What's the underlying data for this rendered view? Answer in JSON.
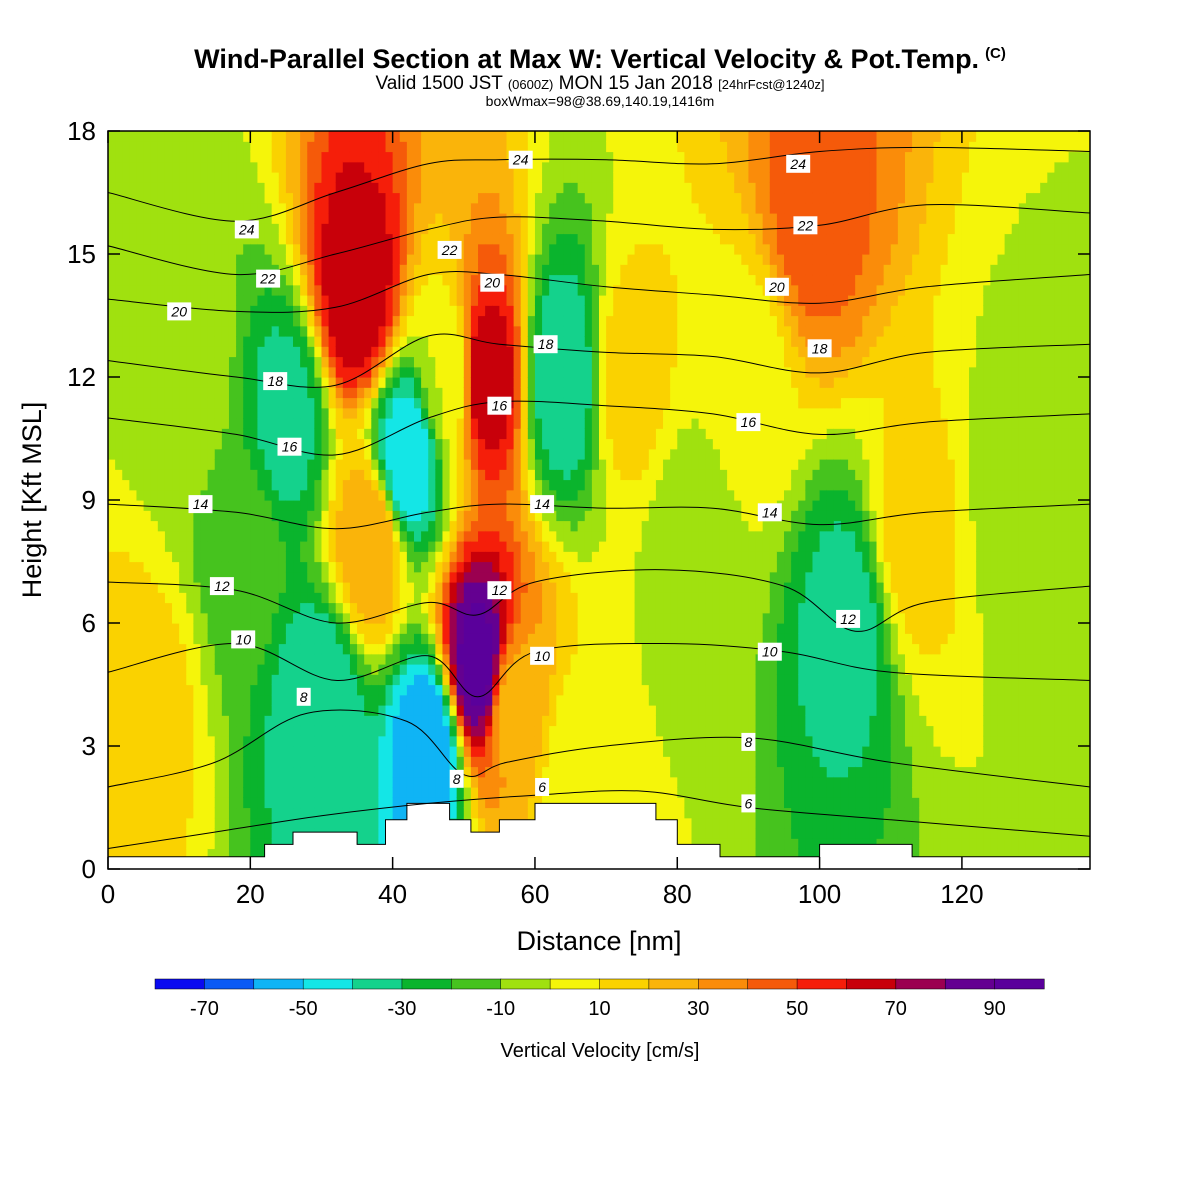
{
  "title": {
    "main": "Wind-Parallel Section at Max W: Vertical Velocity & Pot.Temp.",
    "copyright": "(C)",
    "valid_prefix": "Valid 1500 JST",
    "valid_utc": "(0600Z)",
    "valid_date": "MON 15 Jan 2018",
    "forecast": "[24hrFcst@1240z]",
    "box_info": "boxWmax=98@38.69,140.19,1416m"
  },
  "chart_data": {
    "type": "heatmap",
    "xlabel": "Distance [nm]",
    "ylabel": "Height [Kft MSL]",
    "xlim": [
      0,
      138
    ],
    "ylim": [
      0,
      18
    ],
    "x_ticks": [
      0,
      20,
      40,
      60,
      80,
      100,
      120
    ],
    "y_ticks": [
      0,
      3,
      6,
      9,
      12,
      15,
      18
    ],
    "colorbar": {
      "label": "Vertical Velocity [cm/s]",
      "levels": [
        -80,
        -70,
        -60,
        -50,
        -40,
        -30,
        -20,
        -10,
        0,
        10,
        20,
        30,
        40,
        50,
        60,
        70,
        80,
        90,
        100
      ],
      "tick_labels": [
        "-70",
        "-50",
        "-30",
        "-10",
        "10",
        "30",
        "50",
        "70",
        "90"
      ],
      "colors": [
        "#0a0af0",
        "#0a5af5",
        "#0fb4f5",
        "#14e6e6",
        "#14d28c",
        "#0ab42d",
        "#46c31e",
        "#a0e10f",
        "#f5f50a",
        "#fad200",
        "#fab40a",
        "#fa8c0a",
        "#f55a0a",
        "#f51e0a",
        "#c8000a",
        "#9b0050",
        "#640091",
        "#5a009b"
      ]
    },
    "velocity_samples": [
      {
        "x": 5,
        "y": 4,
        "w": 15
      },
      {
        "x": 12,
        "y": 12,
        "w": -5
      },
      {
        "x": 19,
        "y": 8,
        "w": -15
      },
      {
        "x": 25,
        "y": 11,
        "w": -35
      },
      {
        "x": 30,
        "y": 4,
        "w": -40
      },
      {
        "x": 35,
        "y": 14,
        "w": 70
      },
      {
        "x": 37,
        "y": 8,
        "w": 30
      },
      {
        "x": 42,
        "y": 10,
        "w": -50
      },
      {
        "x": 45,
        "y": 3,
        "w": -60
      },
      {
        "x": 48,
        "y": 12,
        "w": 0
      },
      {
        "x": 52,
        "y": 5,
        "w": 95
      },
      {
        "x": 53,
        "y": 12,
        "w": 70
      },
      {
        "x": 57,
        "y": 4,
        "w": 25
      },
      {
        "x": 64,
        "y": 12,
        "w": -40
      },
      {
        "x": 66,
        "y": 2,
        "w": 0
      },
      {
        "x": 73,
        "y": 12,
        "w": 15
      },
      {
        "x": 82,
        "y": 8,
        "w": -5
      },
      {
        "x": 90,
        "y": 12,
        "w": 5
      },
      {
        "x": 99,
        "y": 16,
        "w": 45
      },
      {
        "x": 104,
        "y": 6,
        "w": -35
      },
      {
        "x": 113,
        "y": 8,
        "w": 15
      },
      {
        "x": 128,
        "y": 9,
        "w": -5
      }
    ],
    "terrain_kft": [
      {
        "x": 0,
        "h": 0.3
      },
      {
        "x": 22,
        "h": 0.3
      },
      {
        "x": 22,
        "h": 0.6
      },
      {
        "x": 26,
        "h": 0.6
      },
      {
        "x": 26,
        "h": 0.9
      },
      {
        "x": 35,
        "h": 0.9
      },
      {
        "x": 35,
        "h": 0.6
      },
      {
        "x": 39,
        "h": 0.6
      },
      {
        "x": 39,
        "h": 1.2
      },
      {
        "x": 42,
        "h": 1.2
      },
      {
        "x": 42,
        "h": 1.6
      },
      {
        "x": 48,
        "h": 1.6
      },
      {
        "x": 48,
        "h": 1.2
      },
      {
        "x": 51,
        "h": 1.2
      },
      {
        "x": 51,
        "h": 0.9
      },
      {
        "x": 55,
        "h": 0.9
      },
      {
        "x": 55,
        "h": 1.2
      },
      {
        "x": 60,
        "h": 1.2
      },
      {
        "x": 60,
        "h": 1.6
      },
      {
        "x": 77,
        "h": 1.6
      },
      {
        "x": 77,
        "h": 1.2
      },
      {
        "x": 80,
        "h": 1.2
      },
      {
        "x": 80,
        "h": 0.6
      },
      {
        "x": 86,
        "h": 0.6
      },
      {
        "x": 86,
        "h": 0.3
      },
      {
        "x": 100,
        "h": 0.3
      },
      {
        "x": 100,
        "h": 0.6
      },
      {
        "x": 113,
        "h": 0.6
      },
      {
        "x": 113,
        "h": 0.3
      },
      {
        "x": 138,
        "h": 0.3
      }
    ],
    "theta_contours": [
      {
        "label": "6",
        "pts": [
          [
            0,
            0.5
          ],
          [
            15,
            0.9
          ],
          [
            30,
            1.3
          ],
          [
            45,
            1.6
          ],
          [
            60,
            1.8
          ],
          [
            75,
            1.9
          ],
          [
            90,
            1.5
          ],
          [
            110,
            1.2
          ],
          [
            138,
            0.8
          ]
        ]
      },
      {
        "label": "8",
        "pts": [
          [
            0,
            2.0
          ],
          [
            15,
            2.6
          ],
          [
            28,
            3.8
          ],
          [
            42,
            3.6
          ],
          [
            50,
            2.3
          ],
          [
            56,
            2.6
          ],
          [
            70,
            3.0
          ],
          [
            90,
            3.2
          ],
          [
            110,
            2.6
          ],
          [
            138,
            2.0
          ]
        ]
      },
      {
        "label": "10",
        "pts": [
          [
            0,
            4.8
          ],
          [
            18,
            5.5
          ],
          [
            32,
            4.6
          ],
          [
            45,
            5.2
          ],
          [
            52,
            4.2
          ],
          [
            60,
            5.3
          ],
          [
            78,
            5.5
          ],
          [
            95,
            5.3
          ],
          [
            110,
            4.8
          ],
          [
            138,
            4.6
          ]
        ]
      },
      {
        "label": "12",
        "pts": [
          [
            0,
            7.0
          ],
          [
            18,
            6.8
          ],
          [
            32,
            6.0
          ],
          [
            45,
            6.5
          ],
          [
            52,
            6.2
          ],
          [
            60,
            7.0
          ],
          [
            78,
            7.3
          ],
          [
            95,
            6.9
          ],
          [
            105,
            5.8
          ],
          [
            115,
            6.5
          ],
          [
            138,
            6.9
          ]
        ]
      },
      {
        "label": "14",
        "pts": [
          [
            0,
            8.9
          ],
          [
            18,
            8.7
          ],
          [
            32,
            8.3
          ],
          [
            45,
            8.7
          ],
          [
            55,
            8.9
          ],
          [
            70,
            8.8
          ],
          [
            85,
            8.8
          ],
          [
            100,
            8.4
          ],
          [
            115,
            8.7
          ],
          [
            138,
            8.9
          ]
        ]
      },
      {
        "label": "16",
        "pts": [
          [
            0,
            11.0
          ],
          [
            18,
            10.6
          ],
          [
            32,
            10.1
          ],
          [
            45,
            11.0
          ],
          [
            55,
            11.4
          ],
          [
            70,
            11.3
          ],
          [
            85,
            11.1
          ],
          [
            100,
            10.6
          ],
          [
            115,
            10.9
          ],
          [
            138,
            11.1
          ]
        ]
      },
      {
        "label": "18",
        "pts": [
          [
            0,
            12.4
          ],
          [
            18,
            12.0
          ],
          [
            32,
            11.8
          ],
          [
            45,
            13.0
          ],
          [
            55,
            12.8
          ],
          [
            70,
            12.6
          ],
          [
            85,
            12.5
          ],
          [
            100,
            12.1
          ],
          [
            115,
            12.6
          ],
          [
            138,
            12.8
          ]
        ]
      },
      {
        "label": "20",
        "pts": [
          [
            0,
            13.9
          ],
          [
            18,
            13.6
          ],
          [
            32,
            13.7
          ],
          [
            45,
            14.5
          ],
          [
            55,
            14.5
          ],
          [
            70,
            14.2
          ],
          [
            85,
            14.0
          ],
          [
            100,
            13.8
          ],
          [
            115,
            14.2
          ],
          [
            138,
            14.5
          ]
        ]
      },
      {
        "label": "22",
        "pts": [
          [
            0,
            15.2
          ],
          [
            18,
            14.5
          ],
          [
            32,
            15.0
          ],
          [
            45,
            15.6
          ],
          [
            55,
            15.9
          ],
          [
            70,
            15.8
          ],
          [
            85,
            15.6
          ],
          [
            100,
            15.7
          ],
          [
            115,
            16.2
          ],
          [
            138,
            16.0
          ]
        ]
      },
      {
        "label": "24",
        "pts": [
          [
            0,
            16.5
          ],
          [
            18,
            15.8
          ],
          [
            32,
            16.5
          ],
          [
            45,
            17.2
          ],
          [
            55,
            17.3
          ],
          [
            70,
            17.3
          ],
          [
            85,
            17.2
          ],
          [
            100,
            17.5
          ],
          [
            115,
            17.6
          ],
          [
            138,
            17.5
          ]
        ]
      }
    ],
    "contour_labels": [
      {
        "text": "24",
        "x": 19.5,
        "y": 15.6
      },
      {
        "text": "22",
        "x": 22.5,
        "y": 14.4
      },
      {
        "text": "20",
        "x": 10,
        "y": 13.6
      },
      {
        "text": "18",
        "x": 23.5,
        "y": 11.9
      },
      {
        "text": "16",
        "x": 25.5,
        "y": 10.3
      },
      {
        "text": "14",
        "x": 13,
        "y": 8.9
      },
      {
        "text": "12",
        "x": 16,
        "y": 6.9
      },
      {
        "text": "10",
        "x": 19,
        "y": 5.6
      },
      {
        "text": "8",
        "x": 27.5,
        "y": 4.2
      },
      {
        "text": "24",
        "x": 58,
        "y": 17.3
      },
      {
        "text": "22",
        "x": 48,
        "y": 15.1
      },
      {
        "text": "20",
        "x": 54,
        "y": 14.3
      },
      {
        "text": "18",
        "x": 61.5,
        "y": 12.8
      },
      {
        "text": "16",
        "x": 55,
        "y": 11.3
      },
      {
        "text": "14",
        "x": 61,
        "y": 8.9
      },
      {
        "text": "12",
        "x": 55,
        "y": 6.8
      },
      {
        "text": "10",
        "x": 61,
        "y": 5.2
      },
      {
        "text": "8",
        "x": 49,
        "y": 2.2
      },
      {
        "text": "6",
        "x": 61,
        "y": 2.0
      },
      {
        "text": "24",
        "x": 97,
        "y": 17.2
      },
      {
        "text": "22",
        "x": 98,
        "y": 15.7
      },
      {
        "text": "20",
        "x": 94,
        "y": 14.2
      },
      {
        "text": "18",
        "x": 100,
        "y": 12.7
      },
      {
        "text": "16",
        "x": 90,
        "y": 10.9
      },
      {
        "text": "14",
        "x": 93,
        "y": 8.7
      },
      {
        "text": "12",
        "x": 104,
        "y": 6.1
      },
      {
        "text": "10",
        "x": 93,
        "y": 5.3
      },
      {
        "text": "8",
        "x": 90,
        "y": 3.1
      },
      {
        "text": "6",
        "x": 90,
        "y": 1.6
      }
    ]
  }
}
